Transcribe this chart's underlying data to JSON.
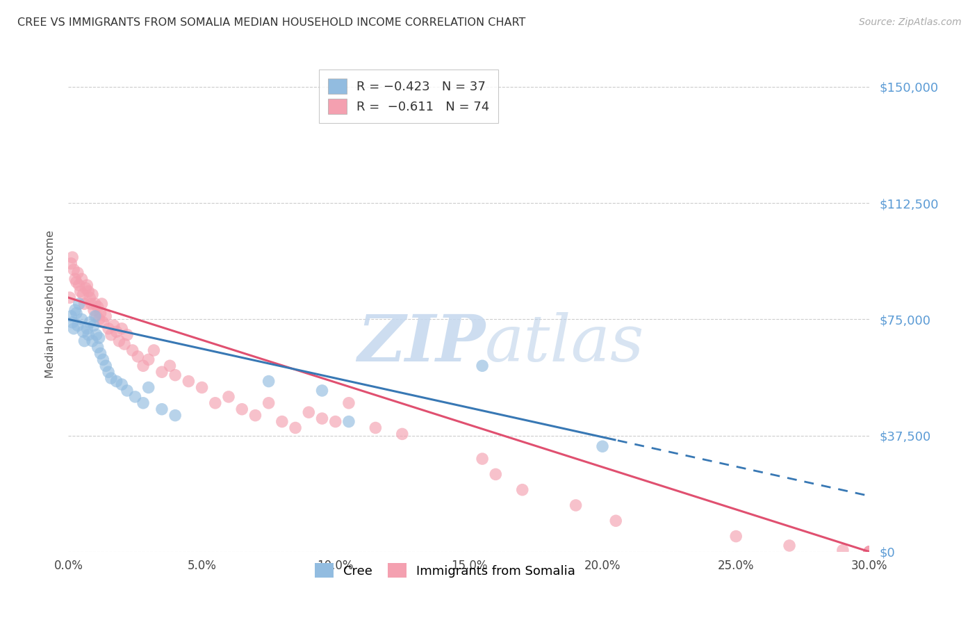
{
  "title": "CREE VS IMMIGRANTS FROM SOMALIA MEDIAN HOUSEHOLD INCOME CORRELATION CHART",
  "source": "Source: ZipAtlas.com",
  "ylabel": "Median Household Income",
  "ytick_labels": [
    "$0",
    "$37,500",
    "$75,000",
    "$112,500",
    "$150,000"
  ],
  "ytick_vals": [
    0,
    37500,
    75000,
    112500,
    150000
  ],
  "ylim": [
    0,
    160000
  ],
  "xlim": [
    0,
    30
  ],
  "xtick_vals": [
    0.0,
    5.0,
    10.0,
    15.0,
    20.0,
    25.0,
    30.0
  ],
  "xtick_labels": [
    "0.0%",
    "5.0%",
    "10.0%",
    "15.0%",
    "20.0%",
    "25.0%",
    "30.0%"
  ],
  "cree_R": -0.423,
  "cree_N": 37,
  "somalia_R": -0.611,
  "somalia_N": 74,
  "cree_color": "#92bce0",
  "somalia_color": "#f4a0b0",
  "cree_line_color": "#3878b4",
  "somalia_line_color": "#e05070",
  "watermark_zip": "ZIP",
  "watermark_atlas": "atlas",
  "grid_color": "#cccccc",
  "background": "#ffffff",
  "cree_x": [
    0.1,
    0.15,
    0.2,
    0.25,
    0.3,
    0.35,
    0.4,
    0.5,
    0.55,
    0.6,
    0.7,
    0.75,
    0.8,
    0.9,
    0.95,
    1.0,
    1.05,
    1.1,
    1.15,
    1.2,
    1.3,
    1.4,
    1.5,
    1.6,
    1.8,
    2.0,
    2.2,
    2.5,
    2.8,
    3.0,
    3.5,
    4.0,
    7.5,
    9.5,
    10.5,
    15.5,
    20.0
  ],
  "cree_y": [
    76000,
    74000,
    72000,
    78000,
    77000,
    73000,
    80000,
    75000,
    71000,
    68000,
    72000,
    70000,
    74000,
    68000,
    73000,
    76000,
    70000,
    66000,
    69000,
    64000,
    62000,
    60000,
    58000,
    56000,
    55000,
    54000,
    52000,
    50000,
    48000,
    53000,
    46000,
    44000,
    55000,
    52000,
    42000,
    60000,
    34000
  ],
  "somalia_x": [
    0.05,
    0.1,
    0.15,
    0.2,
    0.25,
    0.3,
    0.35,
    0.4,
    0.45,
    0.5,
    0.55,
    0.6,
    0.65,
    0.7,
    0.75,
    0.8,
    0.85,
    0.9,
    0.95,
    1.0,
    1.05,
    1.1,
    1.15,
    1.2,
    1.25,
    1.3,
    1.4,
    1.5,
    1.6,
    1.7,
    1.8,
    1.9,
    2.0,
    2.1,
    2.2,
    2.4,
    2.6,
    2.8,
    3.0,
    3.2,
    3.5,
    3.8,
    4.0,
    4.5,
    5.0,
    5.5,
    6.0,
    6.5,
    7.0,
    7.5,
    8.0,
    8.5,
    9.0,
    9.5,
    10.0,
    10.5,
    11.5,
    12.5,
    15.5,
    16.0,
    17.0,
    19.0,
    20.5,
    25.0,
    27.0,
    29.0,
    30.0,
    30.0,
    30.0,
    30.0,
    30.0,
    30.0,
    30.0,
    30.0
  ],
  "somalia_y": [
    82000,
    93000,
    95000,
    91000,
    88000,
    87000,
    90000,
    86000,
    84000,
    88000,
    83000,
    80000,
    85000,
    86000,
    84000,
    82000,
    80000,
    83000,
    78000,
    80000,
    76000,
    79000,
    75000,
    77000,
    80000,
    74000,
    76000,
    72000,
    70000,
    73000,
    71000,
    68000,
    72000,
    67000,
    70000,
    65000,
    63000,
    60000,
    62000,
    65000,
    58000,
    60000,
    57000,
    55000,
    53000,
    48000,
    50000,
    46000,
    44000,
    48000,
    42000,
    40000,
    45000,
    43000,
    42000,
    48000,
    40000,
    38000,
    30000,
    25000,
    20000,
    15000,
    10000,
    5000,
    2000,
    500,
    0,
    0,
    0,
    0,
    0,
    0,
    0,
    0
  ]
}
